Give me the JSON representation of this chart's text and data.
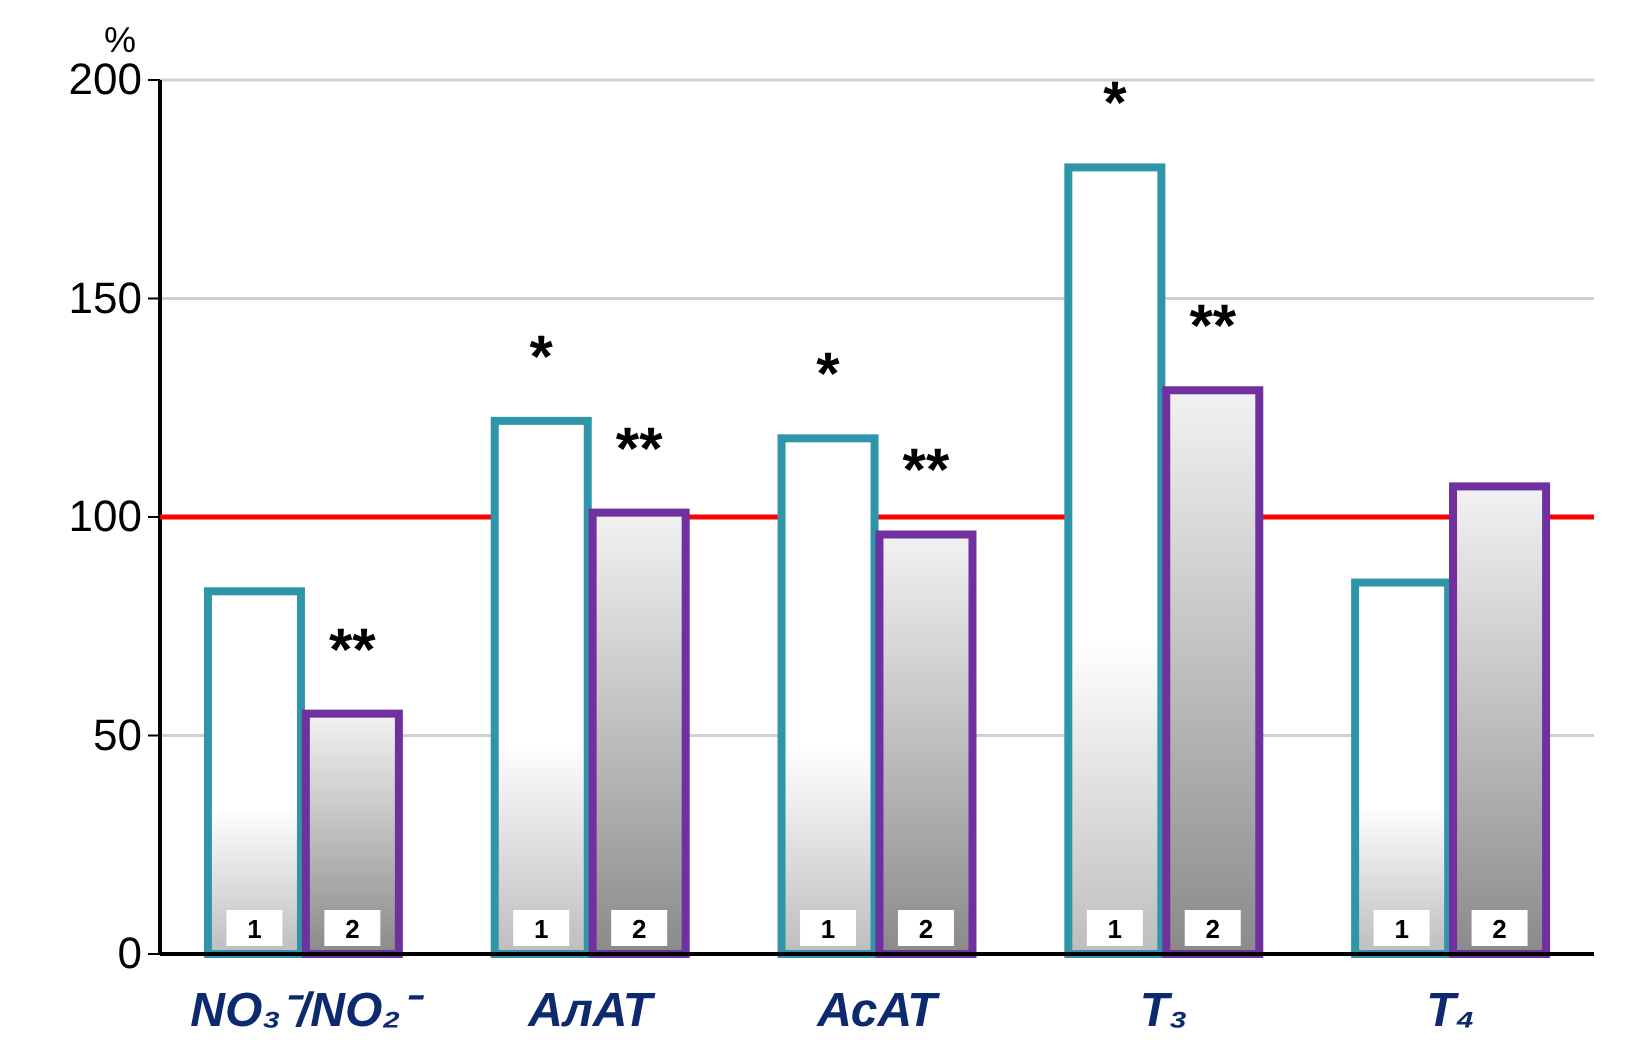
{
  "chart_data": {
    "type": "bar",
    "ylabel": "%",
    "categories": [
      "NO₃⁻/NO₂⁻",
      "АлАТ",
      "АсАТ",
      "T₃",
      "T₄"
    ],
    "series": [
      {
        "name": "1",
        "color": "#2e96a8",
        "values": [
          83,
          122,
          118,
          180,
          85
        ]
      },
      {
        "name": "2",
        "color": "#7030a0",
        "values": [
          55,
          101,
          96,
          129,
          107
        ]
      }
    ],
    "ylim": [
      0,
      200
    ],
    "yticks": [
      0,
      50,
      100,
      150,
      200
    ],
    "grid": "y",
    "ref_lines": [
      {
        "axis": "y",
        "value": 100,
        "color": "#ff0000"
      }
    ],
    "annotations": [
      {
        "text": "**",
        "x": "NO₃⁻/NO₂⁻",
        "y": 55
      },
      {
        "text": "*",
        "x": "АлАТ",
        "y": 122
      },
      {
        "text": "**",
        "x": "АлАТ",
        "y": 101
      },
      {
        "text": "*",
        "x": "АсАТ",
        "y": 118
      },
      {
        "text": "**",
        "x": "АсАТ",
        "y": 96
      },
      {
        "text": "*",
        "x": "T₃",
        "y": 180
      },
      {
        "text": "**",
        "x": "T₃",
        "y": 129
      }
    ]
  }
}
